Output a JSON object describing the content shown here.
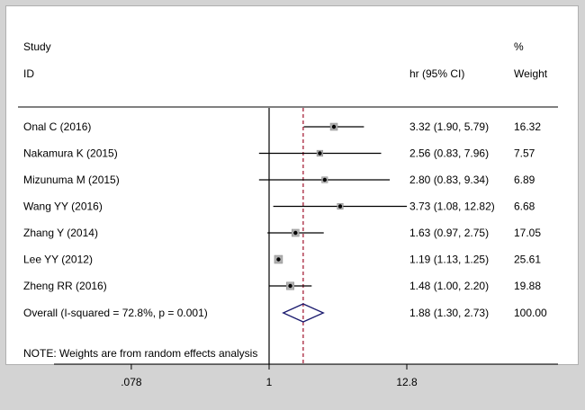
{
  "chart_data": {
    "type": "forest",
    "x_scale": "log",
    "header": {
      "col1_line1": "Study",
      "col1_line2": "ID",
      "col2": "hr (95% CI)",
      "col3_line1": "%",
      "col3_line2": "Weight"
    },
    "studies": [
      {
        "label": "Onal C (2016)",
        "hr": 3.32,
        "lo": 1.9,
        "hi": 5.79,
        "ci_text": "3.32 (1.90, 5.79)",
        "weight": 16.32,
        "weight_text": "16.32"
      },
      {
        "label": "Nakamura K (2015)",
        "hr": 2.56,
        "lo": 0.83,
        "hi": 7.96,
        "ci_text": "2.56 (0.83, 7.96)",
        "weight": 7.57,
        "weight_text": "7.57"
      },
      {
        "label": "Mizunuma M (2015)",
        "hr": 2.8,
        "lo": 0.83,
        "hi": 9.34,
        "ci_text": "2.80 (0.83, 9.34)",
        "weight": 6.89,
        "weight_text": "6.89"
      },
      {
        "label": "Wang YY (2016)",
        "hr": 3.73,
        "lo": 1.08,
        "hi": 12.82,
        "ci_text": "3.73 (1.08, 12.82)",
        "weight": 6.68,
        "weight_text": "6.68"
      },
      {
        "label": "Zhang Y (2014)",
        "hr": 1.63,
        "lo": 0.97,
        "hi": 2.75,
        "ci_text": "1.63 (0.97, 2.75)",
        "weight": 17.05,
        "weight_text": "17.05"
      },
      {
        "label": "Lee YY (2012)",
        "hr": 1.19,
        "lo": 1.13,
        "hi": 1.25,
        "ci_text": "1.19 (1.13, 1.25)",
        "weight": 25.61,
        "weight_text": "25.61"
      },
      {
        "label": "Zheng RR (2016)",
        "hr": 1.48,
        "lo": 1.0,
        "hi": 2.2,
        "ci_text": "1.48 (1.00, 2.20)",
        "weight": 19.88,
        "weight_text": "19.88"
      }
    ],
    "overall": {
      "label": "Overall  (I-squared = 72.8%, p = 0.001)",
      "hr": 1.88,
      "lo": 1.3,
      "hi": 2.73,
      "ci_text": "1.88 (1.30, 2.73)",
      "weight_text": "100.00"
    },
    "note": "NOTE: Weights are from random effects analysis",
    "x_ticks": [
      {
        "value": 0.078,
        "label": ".078"
      },
      {
        "value": 1,
        "label": "1"
      },
      {
        "value": 12.8,
        "label": "12.8"
      }
    ],
    "null_value": 1,
    "colors": {
      "overall_line": "#a0102a",
      "diamond": "#1a1a6e",
      "box": "#b0b0b0",
      "axis": "#000000"
    }
  }
}
